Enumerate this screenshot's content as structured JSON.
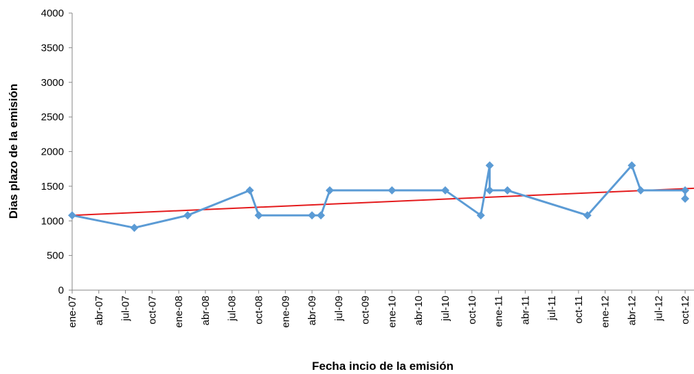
{
  "chart_data": {
    "type": "line",
    "x_label": "Fecha incio de la emisión",
    "y_label": "Dias plazo de la emisión",
    "x": [
      "2007-01",
      "2007-08",
      "2008-02",
      "2008-09",
      "2008-10",
      "2009-04",
      "2009-05",
      "2009-06",
      "2010-01",
      "2010-07",
      "2010-11",
      "2010-12",
      "2010-12",
      "2011-02",
      "2011-11",
      "2012-04",
      "2012-05",
      "2012-10",
      "2012-10"
    ],
    "series": [
      {
        "color": "#5b9bd5",
        "values": [
          1080,
          900,
          1080,
          1440,
          1080,
          1080,
          1080,
          1440,
          1440,
          1440,
          1080,
          1800,
          1440,
          1440,
          1080,
          1800,
          1440,
          1440,
          1320
        ]
      }
    ],
    "trendline": {
      "color": "#e41a1c",
      "values": [
        1080,
        1470
      ]
    },
    "xlim": [
      "2007-01",
      "2012-11"
    ],
    "xticks": [
      {
        "value": "2007-01",
        "label": "ene-07"
      },
      {
        "value": "2007-04",
        "label": "abr-07"
      },
      {
        "value": "2007-07",
        "label": "jul-07"
      },
      {
        "value": "2007-10",
        "label": "oct-07"
      },
      {
        "value": "2008-01",
        "label": "ene-08"
      },
      {
        "value": "2008-04",
        "label": "abr-08"
      },
      {
        "value": "2008-07",
        "label": "jul-08"
      },
      {
        "value": "2008-10",
        "label": "oct-08"
      },
      {
        "value": "2009-01",
        "label": "ene-09"
      },
      {
        "value": "2009-04",
        "label": "abr-09"
      },
      {
        "value": "2009-07",
        "label": "jul-09"
      },
      {
        "value": "2009-10",
        "label": "oct-09"
      },
      {
        "value": "2010-01",
        "label": "ene-10"
      },
      {
        "value": "2010-04",
        "label": "abr-10"
      },
      {
        "value": "2010-07",
        "label": "jul-10"
      },
      {
        "value": "2010-10",
        "label": "oct-10"
      },
      {
        "value": "2011-01",
        "label": "ene-11"
      },
      {
        "value": "2011-04",
        "label": "abr-11"
      },
      {
        "value": "2011-07",
        "label": "jul-11"
      },
      {
        "value": "2011-10",
        "label": "oct-11"
      },
      {
        "value": "2012-01",
        "label": "ene-12"
      },
      {
        "value": "2012-04",
        "label": "abr-12"
      },
      {
        "value": "2012-07",
        "label": "jul-12"
      },
      {
        "value": "2012-10",
        "label": "oct-12"
      }
    ],
    "ylim": [
      0,
      4000
    ],
    "yticks": [
      0,
      500,
      1000,
      1500,
      2000,
      2500,
      3000,
      3500,
      4000
    ],
    "grid": false
  }
}
